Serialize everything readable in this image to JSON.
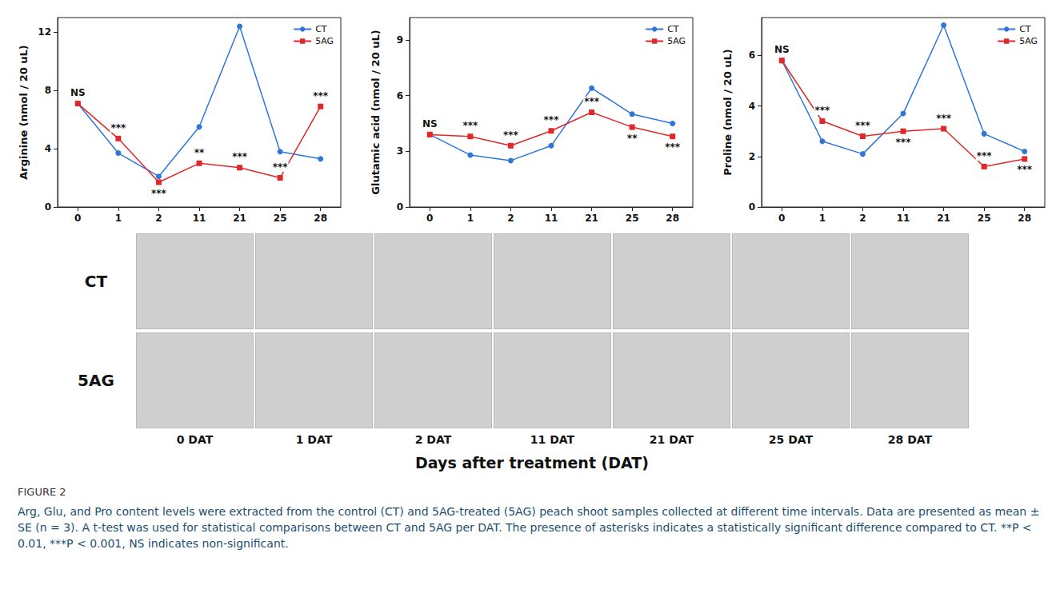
{
  "chart_data": [
    {
      "type": "line",
      "y_label": "Arginine (nmol / 20 uL)",
      "categories": [
        "0",
        "1",
        "2",
        "11",
        "21",
        "25",
        "28"
      ],
      "ylim": [
        0,
        13
      ],
      "yticks": [
        0,
        4,
        8,
        12
      ],
      "legend": "upper right",
      "series": [
        {
          "name": "CT",
          "color": "#2f76d8",
          "marker": "circle",
          "values": [
            7.1,
            3.7,
            2.1,
            5.5,
            12.4,
            3.8,
            3.3
          ]
        },
        {
          "name": "5AG",
          "color": "#e0282a",
          "marker": "square",
          "values": [
            7.1,
            4.7,
            1.7,
            3.0,
            2.7,
            2.0,
            6.9
          ]
        }
      ],
      "annotations": [
        "NS",
        "***",
        "***",
        "**",
        "***",
        "***",
        "***"
      ]
    },
    {
      "type": "line",
      "y_label": "Glutamic acid (nmol / 20 uL)",
      "categories": [
        "0",
        "1",
        "2",
        "11",
        "21",
        "25",
        "28"
      ],
      "ylim": [
        0,
        10.2
      ],
      "yticks": [
        0,
        3,
        6,
        9
      ],
      "legend": "upper right",
      "series": [
        {
          "name": "CT",
          "color": "#2f76d8",
          "marker": "circle",
          "values": [
            3.9,
            2.8,
            2.5,
            3.3,
            6.4,
            5.0,
            4.5
          ]
        },
        {
          "name": "5AG",
          "color": "#e0282a",
          "marker": "square",
          "values": [
            3.9,
            3.8,
            3.3,
            4.1,
            5.1,
            4.3,
            3.8
          ]
        }
      ],
      "annotations": [
        "NS",
        "***",
        "***",
        "***",
        "***",
        "**",
        "***"
      ]
    },
    {
      "type": "line",
      "y_label": "Proline (nmol / 20 uL)",
      "categories": [
        "0",
        "1",
        "2",
        "11",
        "21",
        "25",
        "28"
      ],
      "ylim": [
        0,
        7.5
      ],
      "yticks": [
        0,
        2,
        4,
        6
      ],
      "legend": "upper right",
      "series": [
        {
          "name": "CT",
          "color": "#2f76d8",
          "marker": "circle",
          "values": [
            5.8,
            2.6,
            2.1,
            3.7,
            7.2,
            2.9,
            2.2
          ]
        },
        {
          "name": "5AG",
          "color": "#e0282a",
          "marker": "square",
          "values": [
            5.8,
            3.4,
            2.8,
            3.0,
            3.1,
            1.6,
            1.9
          ]
        }
      ],
      "annotations": [
        "NS",
        "***",
        "***",
        "***",
        "***",
        "***",
        "***"
      ]
    }
  ],
  "photo_panel": {
    "rows": [
      "CT",
      "5AG"
    ],
    "columns": [
      "0 DAT",
      "1 DAT",
      "2 DAT",
      "11 DAT",
      "21 DAT",
      "25 DAT",
      "28 DAT"
    ],
    "x_title": "Days after treatment (DAT)"
  },
  "caption": {
    "label": "FIGURE 2",
    "text": "Arg, Glu, and Pro content levels were extracted from the control (CT) and 5AG-treated (5AG) peach shoot samples collected at different time intervals. Data are presented as mean ± SE (n = 3). A t-test was used for statistical comparisons between CT and 5AG per DAT. The presence of asterisks indicates a statistically significant difference compared to CT. **P < 0.01, ***P < 0.001, NS indicates non-significant."
  }
}
